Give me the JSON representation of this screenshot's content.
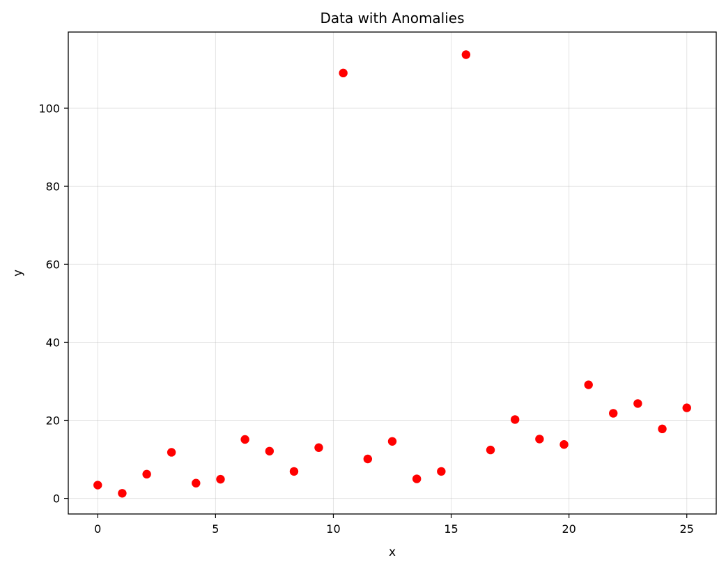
{
  "chart_data": {
    "type": "scatter",
    "title": "Data with Anomalies",
    "xlabel": "x",
    "ylabel": "y",
    "xlim": [
      -1.25,
      26.25
    ],
    "ylim": [
      -4.0,
      119.5
    ],
    "xticks": [
      0,
      5,
      10,
      15,
      20,
      25
    ],
    "yticks": [
      0,
      20,
      40,
      60,
      80,
      100
    ],
    "grid": true,
    "marker_color": "#ff0000",
    "points": [
      {
        "x": 0.0,
        "y": 3.4
      },
      {
        "x": 1.04,
        "y": 1.3
      },
      {
        "x": 2.08,
        "y": 6.2
      },
      {
        "x": 3.13,
        "y": 11.8
      },
      {
        "x": 4.17,
        "y": 3.9
      },
      {
        "x": 5.21,
        "y": 4.9
      },
      {
        "x": 6.25,
        "y": 15.1
      },
      {
        "x": 7.29,
        "y": 12.1
      },
      {
        "x": 8.33,
        "y": 6.9
      },
      {
        "x": 9.38,
        "y": 13.0
      },
      {
        "x": 10.42,
        "y": 109.0
      },
      {
        "x": 11.46,
        "y": 10.1
      },
      {
        "x": 12.5,
        "y": 14.6
      },
      {
        "x": 13.54,
        "y": 5.0
      },
      {
        "x": 14.58,
        "y": 6.9
      },
      {
        "x": 15.63,
        "y": 113.7
      },
      {
        "x": 16.67,
        "y": 12.4
      },
      {
        "x": 17.71,
        "y": 20.2
      },
      {
        "x": 18.75,
        "y": 15.2
      },
      {
        "x": 19.79,
        "y": 13.8
      },
      {
        "x": 20.83,
        "y": 29.1
      },
      {
        "x": 21.88,
        "y": 21.8
      },
      {
        "x": 22.92,
        "y": 24.3
      },
      {
        "x": 23.96,
        "y": 17.8
      },
      {
        "x": 25.0,
        "y": 23.2
      }
    ]
  }
}
